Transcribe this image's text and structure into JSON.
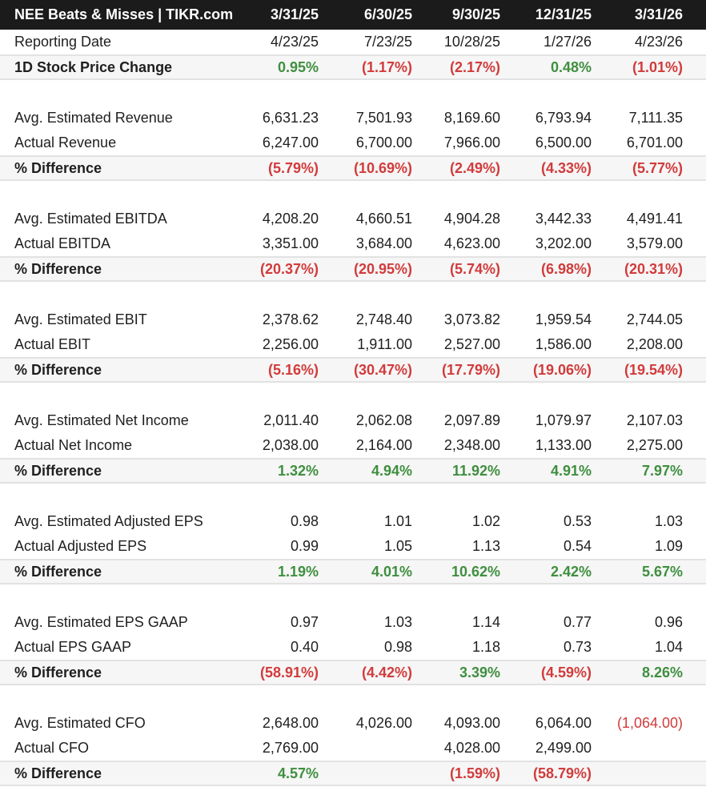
{
  "header": {
    "title": "NEE Beats & Misses | TIKR.com",
    "periods": [
      "3/31/25",
      "6/30/25",
      "9/30/25",
      "12/31/25",
      "3/31/26"
    ]
  },
  "reporting_date": {
    "label": "Reporting Date",
    "values": [
      "4/23/25",
      "7/23/25",
      "10/28/25",
      "1/27/26",
      "4/23/26"
    ]
  },
  "price_change": {
    "label": "1D Stock Price Change",
    "values": [
      "0.95%",
      "(1.17%)",
      "(2.17%)",
      "0.48%",
      "(1.01%)"
    ],
    "signs": [
      "pos",
      "neg",
      "neg",
      "pos",
      "neg"
    ]
  },
  "sections": [
    {
      "est_label": "Avg. Estimated Revenue",
      "est": [
        "6,631.23",
        "7,501.93",
        "8,169.60",
        "6,793.94",
        "7,111.35"
      ],
      "act_label": "Actual Revenue",
      "act": [
        "6,247.00",
        "6,700.00",
        "7,966.00",
        "6,500.00",
        "6,701.00"
      ],
      "diff_label": "% Difference",
      "diff": [
        "(5.79%)",
        "(10.69%)",
        "(2.49%)",
        "(4.33%)",
        "(5.77%)"
      ],
      "diff_signs": [
        "neg",
        "neg",
        "neg",
        "neg",
        "neg"
      ]
    },
    {
      "est_label": "Avg. Estimated EBITDA",
      "est": [
        "4,208.20",
        "4,660.51",
        "4,904.28",
        "3,442.33",
        "4,491.41"
      ],
      "act_label": "Actual EBITDA",
      "act": [
        "3,351.00",
        "3,684.00",
        "4,623.00",
        "3,202.00",
        "3,579.00"
      ],
      "diff_label": "% Difference",
      "diff": [
        "(20.37%)",
        "(20.95%)",
        "(5.74%)",
        "(6.98%)",
        "(20.31%)"
      ],
      "diff_signs": [
        "neg",
        "neg",
        "neg",
        "neg",
        "neg"
      ]
    },
    {
      "est_label": "Avg. Estimated EBIT",
      "est": [
        "2,378.62",
        "2,748.40",
        "3,073.82",
        "1,959.54",
        "2,744.05"
      ],
      "act_label": "Actual EBIT",
      "act": [
        "2,256.00",
        "1,911.00",
        "2,527.00",
        "1,586.00",
        "2,208.00"
      ],
      "diff_label": "% Difference",
      "diff": [
        "(5.16%)",
        "(30.47%)",
        "(17.79%)",
        "(19.06%)",
        "(19.54%)"
      ],
      "diff_signs": [
        "neg",
        "neg",
        "neg",
        "neg",
        "neg"
      ]
    },
    {
      "est_label": "Avg. Estimated Net Income",
      "est": [
        "2,011.40",
        "2,062.08",
        "2,097.89",
        "1,079.97",
        "2,107.03"
      ],
      "act_label": "Actual Net Income",
      "act": [
        "2,038.00",
        "2,164.00",
        "2,348.00",
        "1,133.00",
        "2,275.00"
      ],
      "diff_label": "% Difference",
      "diff": [
        "1.32%",
        "4.94%",
        "11.92%",
        "4.91%",
        "7.97%"
      ],
      "diff_signs": [
        "pos",
        "pos",
        "pos",
        "pos",
        "pos"
      ]
    },
    {
      "est_label": "Avg. Estimated Adjusted EPS",
      "est": [
        "0.98",
        "1.01",
        "1.02",
        "0.53",
        "1.03"
      ],
      "act_label": "Actual Adjusted EPS",
      "act": [
        "0.99",
        "1.05",
        "1.13",
        "0.54",
        "1.09"
      ],
      "diff_label": "% Difference",
      "diff": [
        "1.19%",
        "4.01%",
        "10.62%",
        "2.42%",
        "5.67%"
      ],
      "diff_signs": [
        "pos",
        "pos",
        "pos",
        "pos",
        "pos"
      ]
    },
    {
      "est_label": "Avg. Estimated EPS GAAP",
      "est": [
        "0.97",
        "1.03",
        "1.14",
        "0.77",
        "0.96"
      ],
      "act_label": "Actual EPS GAAP",
      "act": [
        "0.40",
        "0.98",
        "1.18",
        "0.73",
        "1.04"
      ],
      "diff_label": "% Difference",
      "diff": [
        "(58.91%)",
        "(4.42%)",
        "3.39%",
        "(4.59%)",
        "8.26%"
      ],
      "diff_signs": [
        "neg",
        "neg",
        "pos",
        "neg",
        "pos"
      ]
    },
    {
      "est_label": "Avg. Estimated CFO",
      "est": [
        "2,648.00",
        "4,026.00",
        "4,093.00",
        "6,064.00",
        "(1,064.00)"
      ],
      "est_signs": [
        "",
        "",
        "",
        "",
        "neg-light"
      ],
      "act_label": "Actual CFO",
      "act": [
        "2,769.00",
        "",
        "4,028.00",
        "2,499.00",
        ""
      ],
      "diff_label": "% Difference",
      "diff": [
        "4.57%",
        "",
        "(1.59%)",
        "(58.79%)",
        ""
      ],
      "diff_signs": [
        "pos",
        "",
        "neg",
        "neg",
        ""
      ]
    }
  ],
  "colors": {
    "positive": "#3f8f3f",
    "negative": "#d23b3b",
    "header_bg": "#1b1b1b"
  }
}
